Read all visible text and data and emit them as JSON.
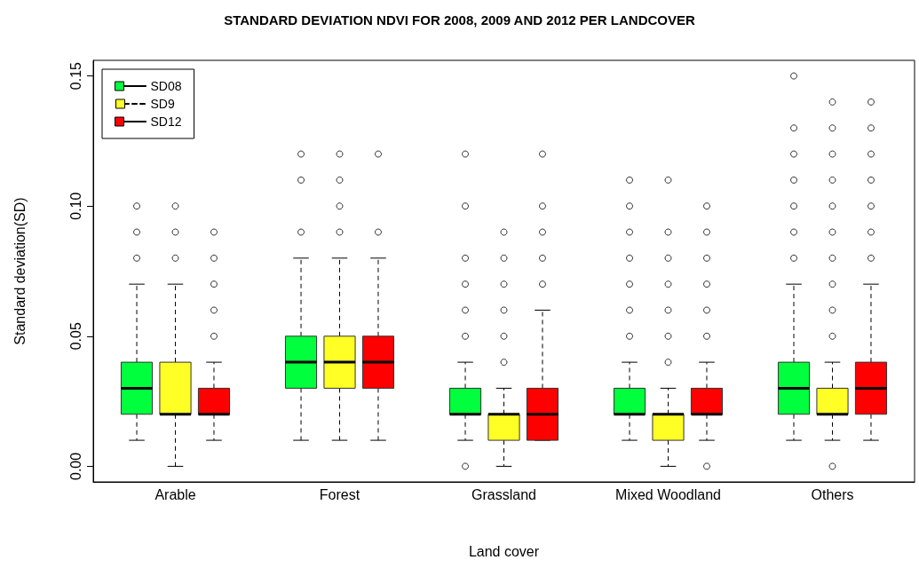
{
  "chart_data": {
    "type": "box",
    "title": "STANDARD DEVIATION NDVI FOR 2008, 2009 AND 2012 PER LANDCOVER",
    "xlabel": "Land cover",
    "ylabel": "Standard deviation(SD)",
    "categories": [
      "Arable",
      "Forest",
      "Grassland",
      "Mixed Woodland",
      "Others"
    ],
    "ylim": [
      -0.006,
      0.156
    ],
    "yticks": [
      {
        "value": 0,
        "label": "0.00"
      },
      {
        "value": 0.05,
        "label": "0.05"
      },
      {
        "value": 0.1,
        "label": "0.10"
      },
      {
        "value": 0.15,
        "label": "0.15"
      }
    ],
    "grid": false,
    "legend": "top left",
    "line_style": "dashed",
    "series": [
      {
        "name": "SD08",
        "color": "#00ff3c",
        "line_style": "solid",
        "boxes": [
          {
            "low": 0.01,
            "q1": 0.02,
            "median": 0.03,
            "q3": 0.04,
            "high": 0.07,
            "outliers": [
              0.08,
              0.09,
              0.1
            ]
          },
          {
            "low": 0.01,
            "q1": 0.03,
            "median": 0.04,
            "q3": 0.05,
            "high": 0.08,
            "outliers": [
              0.09,
              0.11,
              0.12
            ]
          },
          {
            "low": 0.01,
            "q1": 0.02,
            "median": 0.02,
            "q3": 0.03,
            "high": 0.04,
            "outliers": [
              0.0,
              0.05,
              0.06,
              0.07,
              0.08,
              0.1,
              0.12
            ]
          },
          {
            "low": 0.01,
            "q1": 0.02,
            "median": 0.02,
            "q3": 0.03,
            "high": 0.04,
            "outliers": [
              0.05,
              0.06,
              0.07,
              0.08,
              0.09,
              0.1,
              0.11
            ]
          },
          {
            "low": 0.01,
            "q1": 0.02,
            "median": 0.03,
            "q3": 0.04,
            "high": 0.07,
            "outliers": [
              0.08,
              0.09,
              0.1,
              0.11,
              0.12,
              0.13,
              0.15
            ]
          }
        ]
      },
      {
        "name": "SD9",
        "color": "#ffff26",
        "line_style": "dashed",
        "boxes": [
          {
            "low": 0.0,
            "q1": 0.02,
            "median": 0.02,
            "q3": 0.04,
            "high": 0.07,
            "outliers": [
              0.08,
              0.09,
              0.1
            ]
          },
          {
            "low": 0.01,
            "q1": 0.03,
            "median": 0.04,
            "q3": 0.05,
            "high": 0.08,
            "outliers": [
              0.09,
              0.1,
              0.11,
              0.12
            ]
          },
          {
            "low": 0.0,
            "q1": 0.01,
            "median": 0.02,
            "q3": 0.02,
            "high": 0.03,
            "outliers": [
              0.04,
              0.05,
              0.06,
              0.07,
              0.08,
              0.09
            ]
          },
          {
            "low": 0.0,
            "q1": 0.01,
            "median": 0.02,
            "q3": 0.02,
            "high": 0.03,
            "outliers": [
              0.04,
              0.05,
              0.06,
              0.07,
              0.08,
              0.09,
              0.11
            ]
          },
          {
            "low": 0.01,
            "q1": 0.02,
            "median": 0.02,
            "q3": 0.03,
            "high": 0.04,
            "outliers": [
              0.0,
              0.05,
              0.06,
              0.07,
              0.08,
              0.09,
              0.1,
              0.11,
              0.12,
              0.13,
              0.14
            ]
          }
        ]
      },
      {
        "name": "SD12",
        "color": "#ff0000",
        "line_style": "solid",
        "boxes": [
          {
            "low": 0.01,
            "q1": 0.02,
            "median": 0.02,
            "q3": 0.03,
            "high": 0.04,
            "outliers": [
              0.05,
              0.06,
              0.07,
              0.08,
              0.09
            ]
          },
          {
            "low": 0.01,
            "q1": 0.03,
            "median": 0.04,
            "q3": 0.05,
            "high": 0.08,
            "outliers": [
              0.09,
              0.12
            ]
          },
          {
            "low": 0.01,
            "q1": 0.01,
            "median": 0.02,
            "q3": 0.03,
            "high": 0.06,
            "outliers": [
              0.07,
              0.08,
              0.09,
              0.1,
              0.12
            ]
          },
          {
            "low": 0.01,
            "q1": 0.02,
            "median": 0.02,
            "q3": 0.03,
            "high": 0.04,
            "outliers": [
              0.0,
              0.05,
              0.06,
              0.07,
              0.08,
              0.09,
              0.1
            ]
          },
          {
            "low": 0.01,
            "q1": 0.02,
            "median": 0.03,
            "q3": 0.04,
            "high": 0.07,
            "outliers": [
              0.08,
              0.09,
              0.1,
              0.11,
              0.12,
              0.13,
              0.14
            ]
          }
        ]
      }
    ]
  }
}
